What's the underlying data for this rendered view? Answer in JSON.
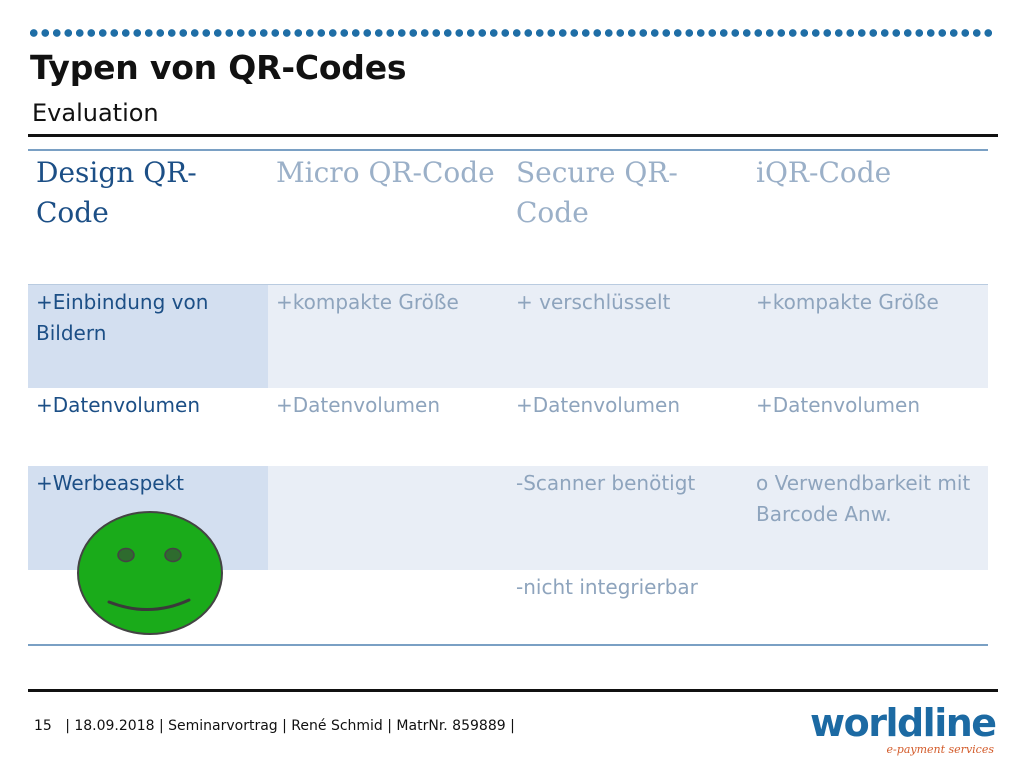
{
  "slide": {
    "title": "Typen von QR-Codes",
    "subtitle": "Evaluation"
  },
  "table": {
    "headers": [
      "Design QR-Code",
      "Micro QR-Code",
      "Secure QR-Code",
      "iQR-Code"
    ],
    "rows": [
      [
        "+Einbindung von Bildern",
        "+kompakte Größe",
        "+ verschlüsselt",
        "+kompakte Größe"
      ],
      [
        "+Datenvolumen",
        "+Datenvolumen",
        "+Datenvolumen",
        "+Datenvolumen"
      ],
      [
        "+Werbeaspekt",
        "",
        "-Scanner benötigt",
        "o Verwendbarkeit mit Barcode Anw."
      ],
      [
        "",
        "",
        "-nicht integrierbar",
        ""
      ]
    ]
  },
  "footer": {
    "page_number": "15",
    "text": "| 18.09.2018 | Seminarvortrag | René Schmid | MatrNr. 859889 |"
  },
  "logo": {
    "wordmark": "worldline",
    "tagline": "e-payment services"
  },
  "colors": {
    "accent_blue": "#1f6ea6",
    "highlight_column_text": "#1c4f86",
    "muted_text": "#8ea4bd",
    "smiley_green": "#1aab1a"
  },
  "icons": {
    "smiley": "smiley-face-icon"
  }
}
